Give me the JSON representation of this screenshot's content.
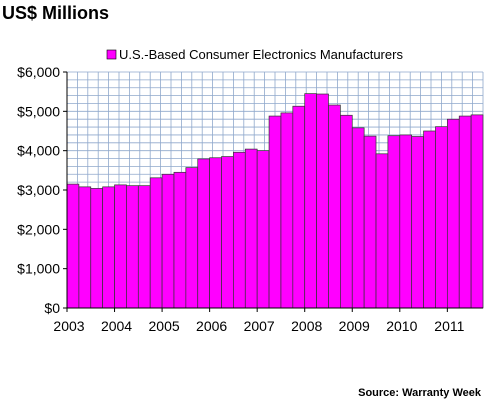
{
  "chart_data": {
    "type": "bar",
    "title": "US$ Millions",
    "source": "Source: Warranty Week",
    "ylim": [
      0,
      6000
    ],
    "y_ticks": [
      0,
      1000,
      2000,
      3000,
      4000,
      5000,
      6000
    ],
    "y_tick_labels": [
      "$0",
      "$1,000",
      "$2,000",
      "$3,000",
      "$4,000",
      "$5,000",
      "$6,000"
    ],
    "x_tick_labels": [
      "2003",
      "2004",
      "2005",
      "2006",
      "2007",
      "2008",
      "2009",
      "2010",
      "2011"
    ],
    "grid": true,
    "legend_position": "top-center",
    "bar_color": "#ff00ff",
    "series": [
      {
        "name": "U.S.-Based Consumer Electronics Manufacturers",
        "values": [
          3150,
          3080,
          3040,
          3080,
          3130,
          3110,
          3110,
          3310,
          3400,
          3450,
          3570,
          3790,
          3820,
          3850,
          3960,
          4040,
          4000,
          4880,
          4960,
          5130,
          5450,
          5440,
          5160,
          4900,
          4580,
          4370,
          3920,
          4380,
          4400,
          4360,
          4500,
          4610,
          4800,
          4880,
          4910
        ]
      }
    ]
  }
}
